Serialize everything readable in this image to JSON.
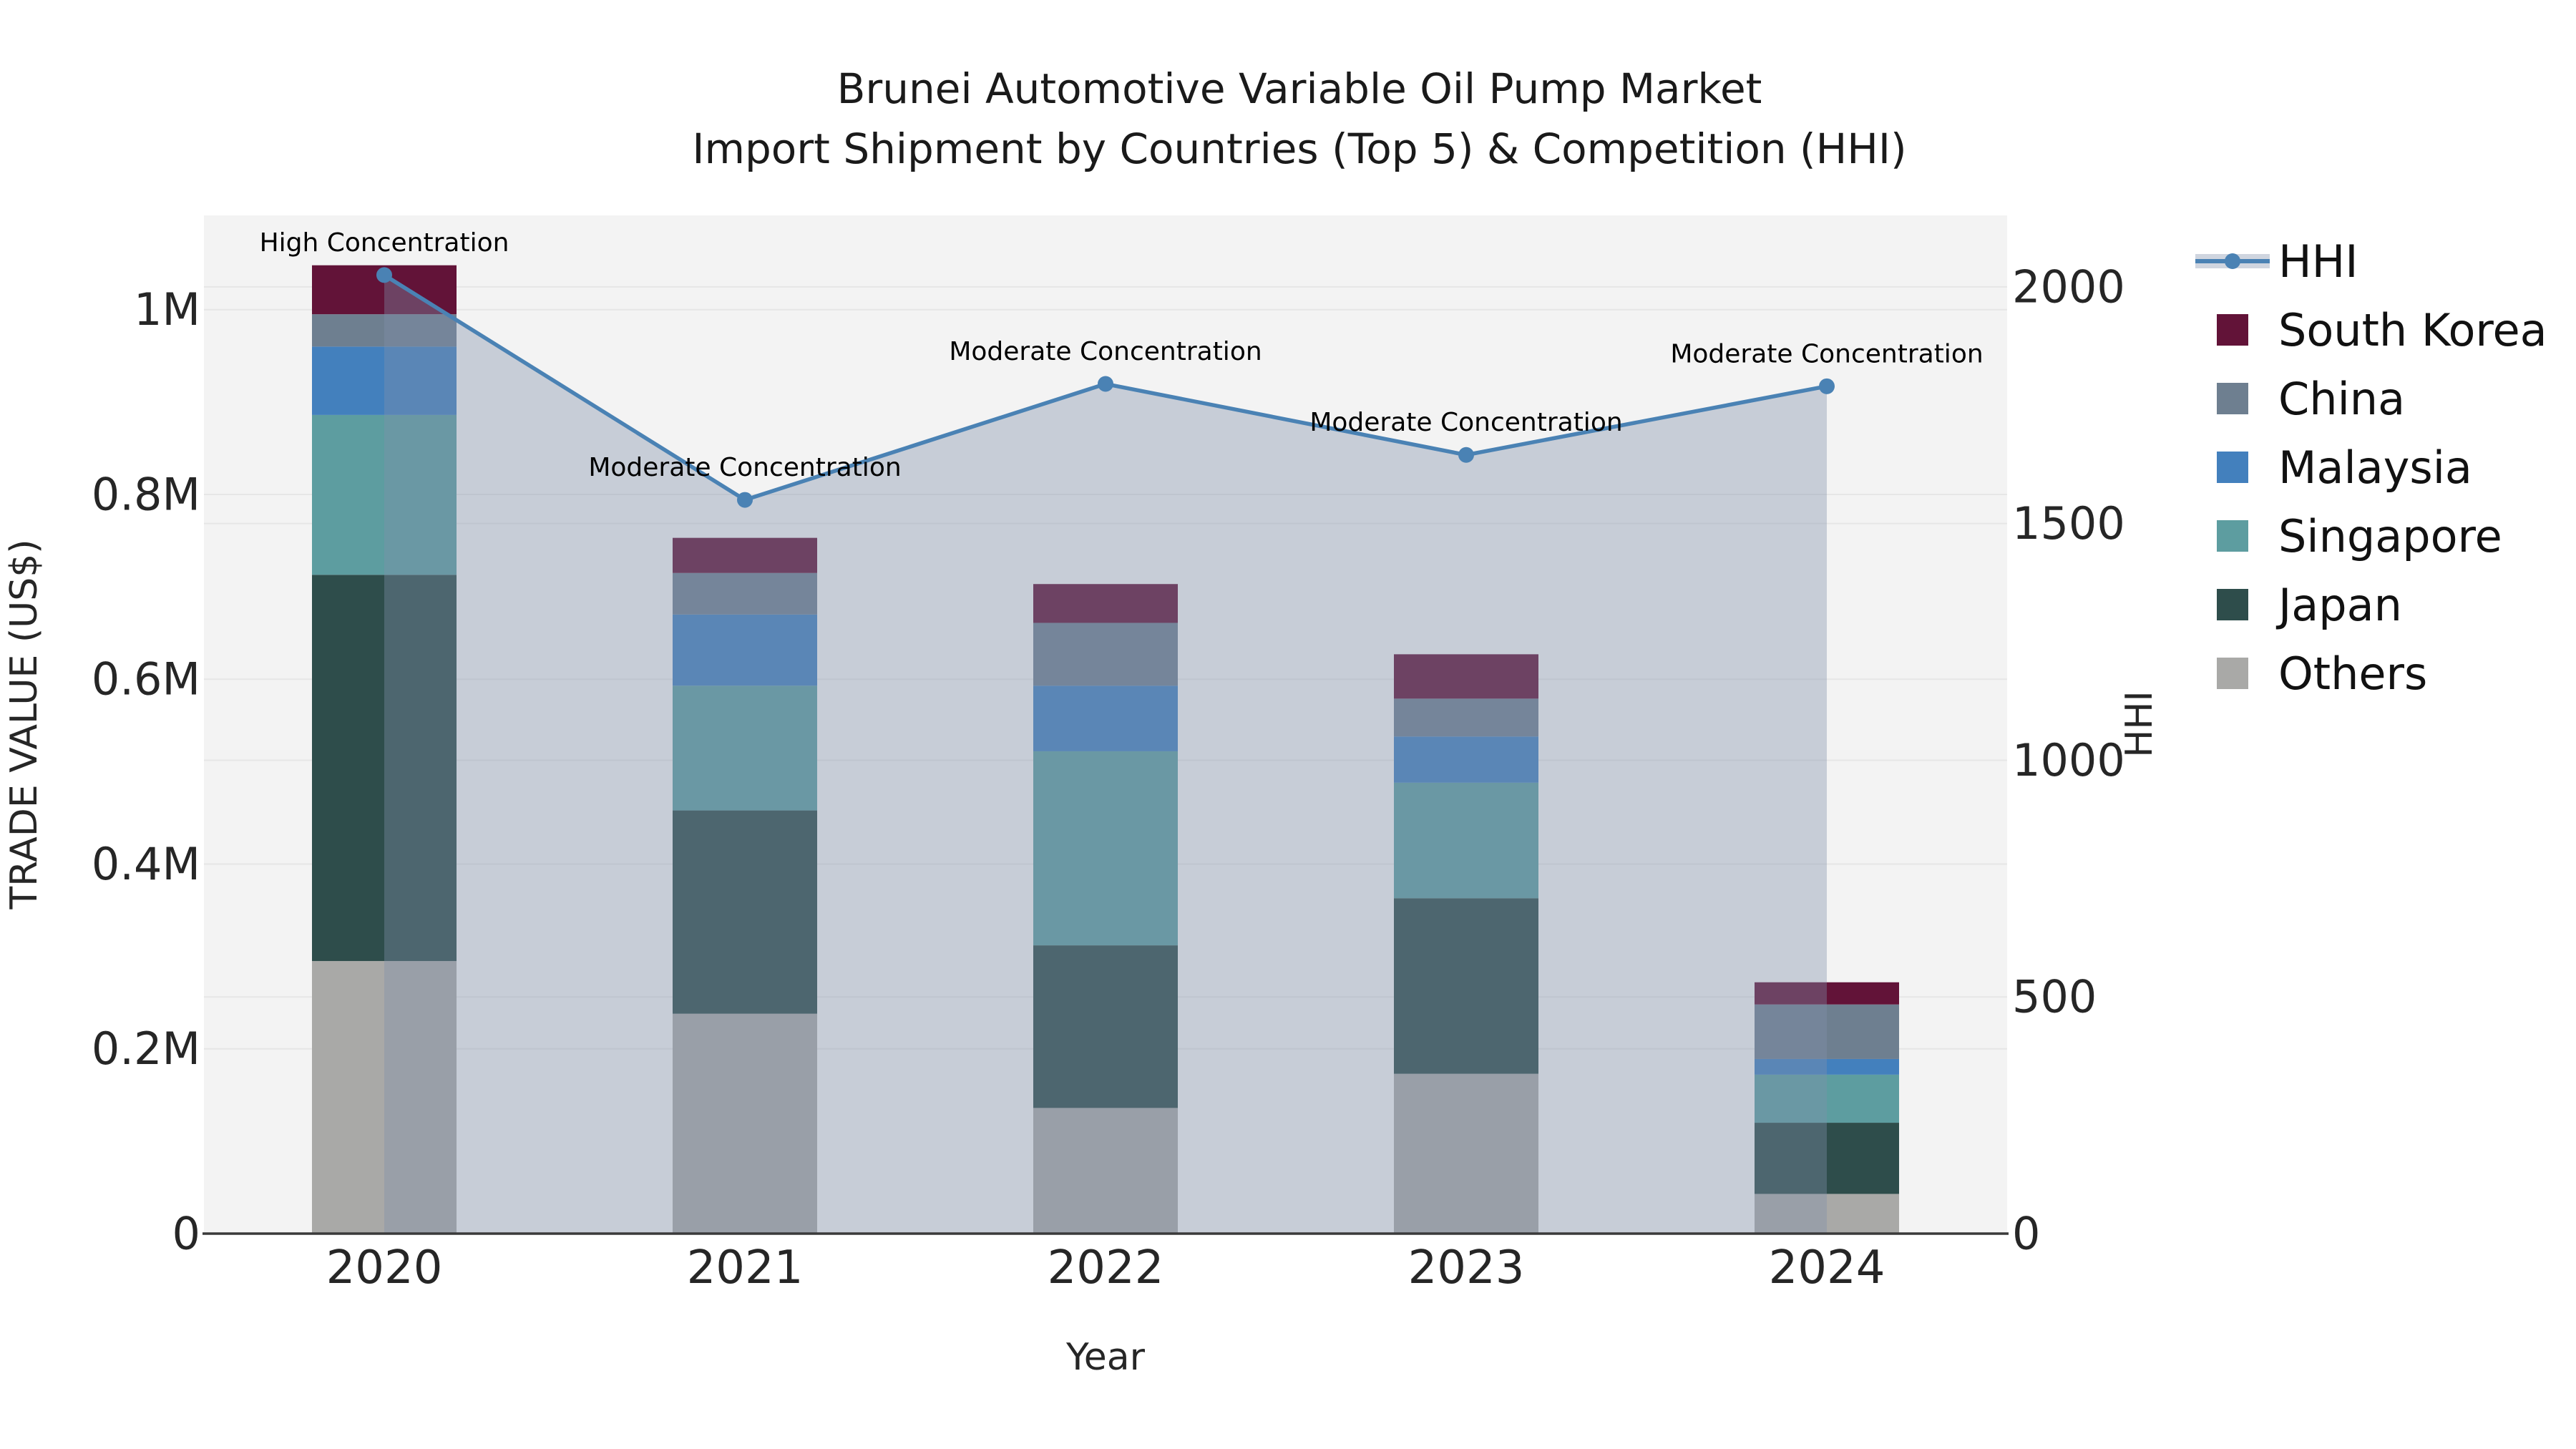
{
  "chart_data": {
    "type": "bar+line",
    "title_lines": [
      "Brunei Automotive Variable Oil Pump Market",
      "Import Shipment by Countries (Top 5) & Competition (HHI)"
    ],
    "categories": [
      "2020",
      "2021",
      "2022",
      "2023",
      "2024"
    ],
    "x_axis": {
      "title": "Year"
    },
    "left_axis": {
      "title": "TRADE VALUE (US$)",
      "tick_labels": [
        "0",
        "0.2M",
        "0.4M",
        "0.6M",
        "0.8M",
        "1M"
      ],
      "tick_values": [
        0,
        200000,
        400000,
        600000,
        800000,
        1000000
      ],
      "max": 1102000
    },
    "right_axis": {
      "title": "HHI",
      "tick_labels": [
        "0",
        "500",
        "1000",
        "1500",
        "2000"
      ],
      "tick_values": [
        0,
        500,
        1000,
        1500,
        2000
      ],
      "max": 2151
    },
    "stack_order_bottom_to_top": [
      "Others",
      "Japan",
      "Singapore",
      "Malaysia",
      "China",
      "South Korea"
    ],
    "series": [
      {
        "name": "Others",
        "color": "#a9a9a7",
        "values": [
          295000,
          238000,
          136000,
          173000,
          43000
        ]
      },
      {
        "name": "Japan",
        "color": "#2e4d4b",
        "values": [
          418000,
          220000,
          176000,
          190000,
          77000
        ]
      },
      {
        "name": "Singapore",
        "color": "#5d9da0",
        "values": [
          173000,
          135000,
          210000,
          125000,
          52000
        ]
      },
      {
        "name": "Malaysia",
        "color": "#4380bd",
        "values": [
          74000,
          77000,
          71000,
          50000,
          17000
        ]
      },
      {
        "name": "China",
        "color": "#6e7f90",
        "values": [
          35000,
          45000,
          68000,
          41000,
          59000
        ]
      },
      {
        "name": "South Korea",
        "color": "#621338",
        "values": [
          53000,
          38000,
          42000,
          48000,
          24000
        ]
      }
    ],
    "bar_totals": [
      1048000,
      753000,
      703000,
      627000,
      272000
    ],
    "line_series": {
      "name": "HHI",
      "color": "#4a82b4",
      "fill_color": "rgba(128,144,172,0.38)",
      "values": [
        2025,
        1550,
        1795,
        1645,
        1790
      ]
    },
    "annotations": [
      {
        "x": "2020",
        "label": "High Concentration"
      },
      {
        "x": "2021",
        "label": "Moderate Concentration"
      },
      {
        "x": "2022",
        "label": "Moderate Concentration"
      },
      {
        "x": "2023",
        "label": "Moderate Concentration"
      },
      {
        "x": "2024",
        "label": "Moderate Concentration"
      }
    ],
    "legend": [
      {
        "label": "HHI",
        "type": "line",
        "color": "#4a82b4"
      },
      {
        "label": "South Korea",
        "type": "swatch",
        "color": "#621338"
      },
      {
        "label": "China",
        "type": "swatch",
        "color": "#6e7f90"
      },
      {
        "label": "Malaysia",
        "type": "swatch",
        "color": "#4380bd"
      },
      {
        "label": "Singapore",
        "type": "swatch",
        "color": "#5d9da0"
      },
      {
        "label": "Japan",
        "type": "swatch",
        "color": "#2e4d4b"
      },
      {
        "label": "Others",
        "type": "swatch",
        "color": "#a9a9a7"
      }
    ],
    "plot_bg": "#f3f3f3",
    "grid_color": "#e6e6e6",
    "axis_line_color": "#3a3a3a",
    "tick_text_color": "#262626",
    "annotation_text_color": "#000000"
  }
}
